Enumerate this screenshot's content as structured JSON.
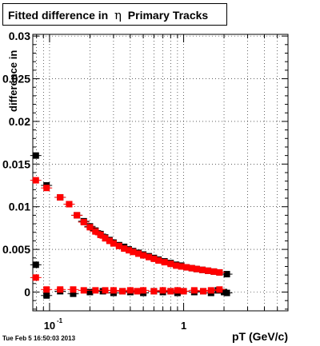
{
  "title": {
    "prefix": "Fitted difference in",
    "symbol": "η",
    "suffix": "Primary Tracks"
  },
  "timestamp": "Tue Feb  5 16:50:03 2013",
  "colors": {
    "series1": "#000000",
    "series2": "#ff0000",
    "grid": "#000000",
    "frame": "#000000"
  },
  "chart_data": {
    "type": "scatter",
    "xlabel": "pT (GeV/c)",
    "ylabel": "difference in",
    "xscale": "log",
    "xlim": [
      0.075,
      6.0
    ],
    "ylim": [
      -0.0022,
      0.0302
    ],
    "grid": true,
    "yticks": [
      {
        "v": 0,
        "label": "0"
      },
      {
        "v": 0.005,
        "label": "0.005"
      },
      {
        "v": 0.01,
        "label": "0.01"
      },
      {
        "v": 0.015,
        "label": "0.015"
      },
      {
        "v": 0.02,
        "label": "0.02"
      },
      {
        "v": 0.025,
        "label": "0.025"
      },
      {
        "v": 0.03,
        "label": "0.03"
      }
    ],
    "xticks": [
      {
        "v": 0.1,
        "label": "10",
        "sup": "-1"
      },
      {
        "v": 1,
        "label": "1",
        "sup": ""
      }
    ],
    "series": [
      {
        "color": "#000000",
        "points": [
          [
            0.079,
            0.016
          ],
          [
            0.095,
            0.0125
          ],
          [
            0.12,
            0.0111
          ],
          [
            0.14,
            0.0103
          ],
          [
            0.16,
            0.009
          ],
          [
            0.18,
            0.0083
          ],
          [
            0.2,
            0.0077
          ],
          [
            0.22,
            0.0072
          ],
          [
            0.24,
            0.0068
          ],
          [
            0.26,
            0.0064
          ],
          [
            0.28,
            0.0061
          ],
          [
            0.3,
            0.0058
          ],
          [
            0.33,
            0.0055
          ],
          [
            0.36,
            0.0053
          ],
          [
            0.39,
            0.005
          ],
          [
            0.42,
            0.0048
          ],
          [
            0.46,
            0.0046
          ],
          [
            0.5,
            0.0044
          ],
          [
            0.55,
            0.0042
          ],
          [
            0.6,
            0.004
          ],
          [
            0.65,
            0.0038
          ],
          [
            0.72,
            0.0036
          ],
          [
            0.8,
            0.0034
          ],
          [
            0.88,
            0.0032
          ],
          [
            0.96,
            0.0031
          ],
          [
            1.05,
            0.0029
          ],
          [
            1.15,
            0.0028
          ],
          [
            1.25,
            0.0027
          ],
          [
            1.38,
            0.0026
          ],
          [
            1.52,
            0.0025
          ],
          [
            1.68,
            0.0024
          ],
          [
            1.85,
            0.0023
          ],
          [
            2.1,
            0.0021
          ],
          [
            0.079,
            0.0032
          ],
          [
            0.095,
            -0.0004
          ],
          [
            0.12,
            0.0001
          ],
          [
            0.15,
            -0.0002
          ],
          [
            0.2,
            0.0
          ],
          [
            0.25,
            0.0001
          ],
          [
            0.3,
            -0.0001
          ],
          [
            0.35,
            0.0001
          ],
          [
            0.4,
            0.0
          ],
          [
            0.45,
            0.0001
          ],
          [
            0.5,
            -0.0001
          ],
          [
            0.6,
            0.0001
          ],
          [
            0.7,
            0.0
          ],
          [
            0.8,
            0.0001
          ],
          [
            0.9,
            -0.0001
          ],
          [
            1.0,
            0.0001
          ],
          [
            1.2,
            0.0
          ],
          [
            1.4,
            0.0001
          ],
          [
            1.6,
            -0.0001
          ],
          [
            1.8,
            0.0002
          ],
          [
            2.0,
            0.0
          ],
          [
            2.1,
            -0.0001
          ]
        ]
      },
      {
        "color": "#ff0000",
        "points": [
          [
            0.079,
            0.0131
          ],
          [
            0.095,
            0.0122
          ],
          [
            0.12,
            0.0111
          ],
          [
            0.14,
            0.0103
          ],
          [
            0.16,
            0.009
          ],
          [
            0.18,
            0.0082
          ],
          [
            0.2,
            0.0076
          ],
          [
            0.22,
            0.0071
          ],
          [
            0.24,
            0.0067
          ],
          [
            0.26,
            0.0063
          ],
          [
            0.28,
            0.006
          ],
          [
            0.3,
            0.0057
          ],
          [
            0.33,
            0.0054
          ],
          [
            0.36,
            0.0051
          ],
          [
            0.39,
            0.0049
          ],
          [
            0.42,
            0.0047
          ],
          [
            0.46,
            0.0045
          ],
          [
            0.5,
            0.0043
          ],
          [
            0.55,
            0.0041
          ],
          [
            0.6,
            0.0039
          ],
          [
            0.65,
            0.0037
          ],
          [
            0.72,
            0.0035
          ],
          [
            0.8,
            0.0033
          ],
          [
            0.88,
            0.0031
          ],
          [
            0.96,
            0.003
          ],
          [
            1.05,
            0.0029
          ],
          [
            1.15,
            0.0028
          ],
          [
            1.25,
            0.0027
          ],
          [
            1.38,
            0.0026
          ],
          [
            1.52,
            0.0025
          ],
          [
            1.68,
            0.0024
          ],
          [
            1.85,
            0.0023
          ],
          [
            0.079,
            0.0017
          ],
          [
            0.095,
            0.0003
          ],
          [
            0.12,
            0.0003
          ],
          [
            0.15,
            0.0003
          ],
          [
            0.18,
            0.0002
          ],
          [
            0.22,
            0.0002
          ],
          [
            0.26,
            0.0002
          ],
          [
            0.3,
            0.0002
          ],
          [
            0.35,
            0.0001
          ],
          [
            0.4,
            0.0002
          ],
          [
            0.45,
            0.0001
          ],
          [
            0.5,
            0.0002
          ],
          [
            0.6,
            0.0001
          ],
          [
            0.7,
            0.0002
          ],
          [
            0.8,
            0.0001
          ],
          [
            0.9,
            0.0002
          ],
          [
            1.0,
            0.0001
          ],
          [
            1.2,
            0.0002
          ],
          [
            1.4,
            0.0001
          ],
          [
            1.6,
            0.0002
          ],
          [
            1.85,
            0.0003
          ]
        ]
      }
    ]
  }
}
